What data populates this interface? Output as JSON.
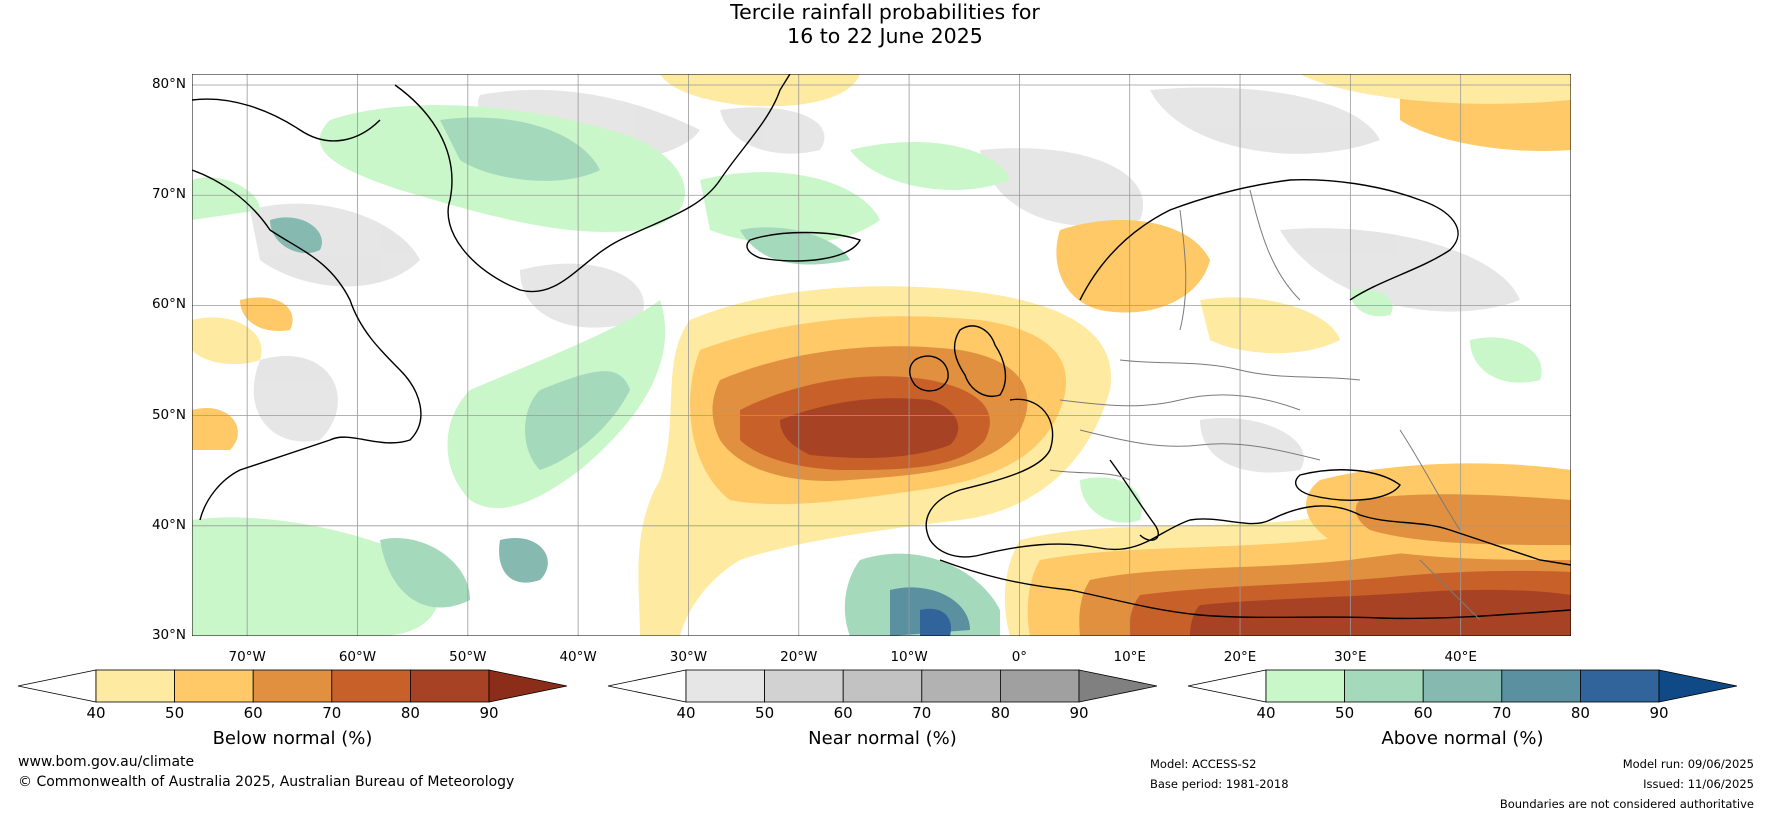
{
  "title": {
    "line1": "Tercile rainfall probabilities for",
    "line2": "16 to 22 June 2025"
  },
  "map": {
    "lat_labels": [
      "80°N",
      "70°N",
      "60°N",
      "50°N",
      "40°N",
      "30°N"
    ],
    "lon_labels": [
      "70°W",
      "60°W",
      "50°W",
      "40°W",
      "30°W",
      "20°W",
      "10°W",
      "0°",
      "10°E",
      "20°E",
      "30°E",
      "40°E"
    ],
    "lat_values": [
      80,
      70,
      60,
      50,
      40,
      30
    ],
    "lon_values": [
      -70,
      -60,
      -50,
      -40,
      -30,
      -20,
      -10,
      0,
      10,
      20,
      30,
      40
    ],
    "lon_range": [
      -75,
      50
    ],
    "lat_range": [
      30,
      81
    ]
  },
  "colorbars": [
    {
      "label": "Below normal (%)",
      "ticks": [
        "40",
        "50",
        "60",
        "70",
        "80",
        "90"
      ],
      "colors": [
        "#ffffff",
        "#feeaa0",
        "#fec966",
        "#e0903f",
        "#c8602a",
        "#a84224",
        "#8b2d18"
      ]
    },
    {
      "label": "Near normal (%)",
      "ticks": [
        "40",
        "50",
        "60",
        "70",
        "80",
        "90"
      ],
      "colors": [
        "#ffffff",
        "#e6e6e6",
        "#d2d2d2",
        "#c2c2c2",
        "#b2b2b2",
        "#a0a0a0",
        "#808080"
      ]
    },
    {
      "label": "Above normal (%)",
      "ticks": [
        "40",
        "50",
        "60",
        "70",
        "80",
        "90"
      ],
      "colors": [
        "#ffffff",
        "#c9f7c9",
        "#a4d9bb",
        "#86bab0",
        "#5a90a0",
        "#30649a",
        "#104a86"
      ]
    }
  ],
  "footer": {
    "website": "www.bom.gov.au/climate",
    "copyright": "© Commonwealth of Australia 2025, Australian Bureau of Meteorology",
    "model": "Model: ACCESS-S2",
    "base_period": "Base period: 1981-2018",
    "model_run": "Model run: 09/06/2025",
    "issued": "Issued: 11/06/2025",
    "disclaimer": "Boundaries are not considered authoritative"
  }
}
